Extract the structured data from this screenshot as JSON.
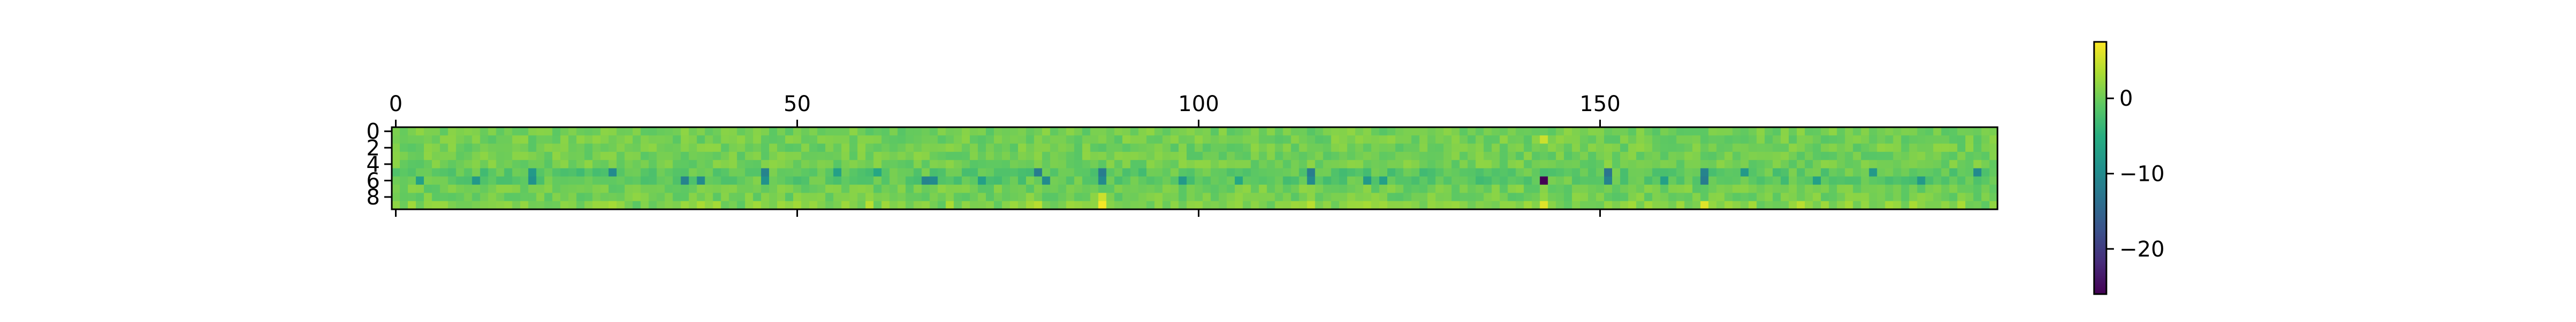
{
  "chart_data": {
    "type": "heatmap",
    "title": "",
    "xlabel": "",
    "ylabel": "",
    "rows": 10,
    "cols": 200,
    "x_ticks": [
      {
        "value": 0,
        "label": "0"
      },
      {
        "value": 50,
        "label": "50"
      },
      {
        "value": 100,
        "label": "100"
      },
      {
        "value": 150,
        "label": "150"
      }
    ],
    "y_ticks": [
      {
        "value": 0,
        "label": "0"
      },
      {
        "value": 2,
        "label": "2"
      },
      {
        "value": 4,
        "label": "4"
      },
      {
        "value": 6,
        "label": "6"
      },
      {
        "value": 8,
        "label": "8"
      }
    ],
    "x_tick_position": "top",
    "colorbar": {
      "vmin": -26,
      "vmax": 7.5,
      "ticks": [
        {
          "value": 0,
          "label": "0"
        },
        {
          "value": -10,
          "label": "−10"
        },
        {
          "value": -20,
          "label": "−20"
        }
      ]
    },
    "colormap": "viridis",
    "values_estimated": true,
    "values_description": "200x10 grid; values mostly between -3 and 3, row 6 (index) contains strongest negative excursions, rows 9 contains occasional positive excursions.",
    "strong_features": [
      {
        "col": 143,
        "row": 6,
        "value": -26
      },
      {
        "col": 88,
        "row": 9,
        "value": 7
      },
      {
        "col": 88,
        "row": 8,
        "value": 5
      },
      {
        "col": 143,
        "row": 1,
        "value": 5
      },
      {
        "col": 143,
        "row": 9,
        "value": 6
      },
      {
        "col": 163,
        "row": 9,
        "value": 6
      },
      {
        "col": 163,
        "row": 5,
        "value": -11
      },
      {
        "col": 163,
        "row": 6,
        "value": -12
      },
      {
        "col": 80,
        "row": 5,
        "value": -12
      },
      {
        "col": 81,
        "row": 6,
        "value": -10
      },
      {
        "col": 88,
        "row": 5,
        "value": -12
      },
      {
        "col": 88,
        "row": 6,
        "value": -10
      },
      {
        "col": 151,
        "row": 5,
        "value": -13
      },
      {
        "col": 151,
        "row": 6,
        "value": -11
      },
      {
        "col": 114,
        "row": 5,
        "value": -12
      },
      {
        "col": 114,
        "row": 6,
        "value": -10
      },
      {
        "col": 66,
        "row": 6,
        "value": -11
      },
      {
        "col": 67,
        "row": 6,
        "value": -10
      },
      {
        "col": 36,
        "row": 6,
        "value": -11
      },
      {
        "col": 38,
        "row": 6,
        "value": -10
      },
      {
        "col": 46,
        "row": 5,
        "value": -11
      },
      {
        "col": 46,
        "row": 6,
        "value": -9
      },
      {
        "col": 27,
        "row": 5,
        "value": -10
      },
      {
        "col": 17,
        "row": 5,
        "value": -8
      },
      {
        "col": 17,
        "row": 6,
        "value": -9
      },
      {
        "col": 10,
        "row": 6,
        "value": -8
      },
      {
        "col": 3,
        "row": 6,
        "value": -7
      },
      {
        "col": 55,
        "row": 5,
        "value": -7
      },
      {
        "col": 73,
        "row": 6,
        "value": -7
      },
      {
        "col": 98,
        "row": 6,
        "value": -8
      },
      {
        "col": 121,
        "row": 6,
        "value": -8
      },
      {
        "col": 123,
        "row": 6,
        "value": -7
      },
      {
        "col": 168,
        "row": 5,
        "value": -8
      },
      {
        "col": 184,
        "row": 5,
        "value": -8
      },
      {
        "col": 190,
        "row": 6,
        "value": -8
      },
      {
        "col": 197,
        "row": 5,
        "value": -10
      },
      {
        "col": 177,
        "row": 6,
        "value": -7
      },
      {
        "col": 158,
        "row": 6,
        "value": -7
      },
      {
        "col": 105,
        "row": 6,
        "value": -6
      },
      {
        "col": 60,
        "row": 5,
        "value": -6
      },
      {
        "col": 114,
        "row": 9,
        "value": 4
      },
      {
        "col": 59,
        "row": 9,
        "value": 4
      },
      {
        "col": 80,
        "row": 9,
        "value": 4
      },
      {
        "col": 175,
        "row": 9,
        "value": 4
      },
      {
        "col": 40,
        "row": 9,
        "value": 3
      },
      {
        "col": 27,
        "row": 9,
        "value": 3
      }
    ]
  }
}
